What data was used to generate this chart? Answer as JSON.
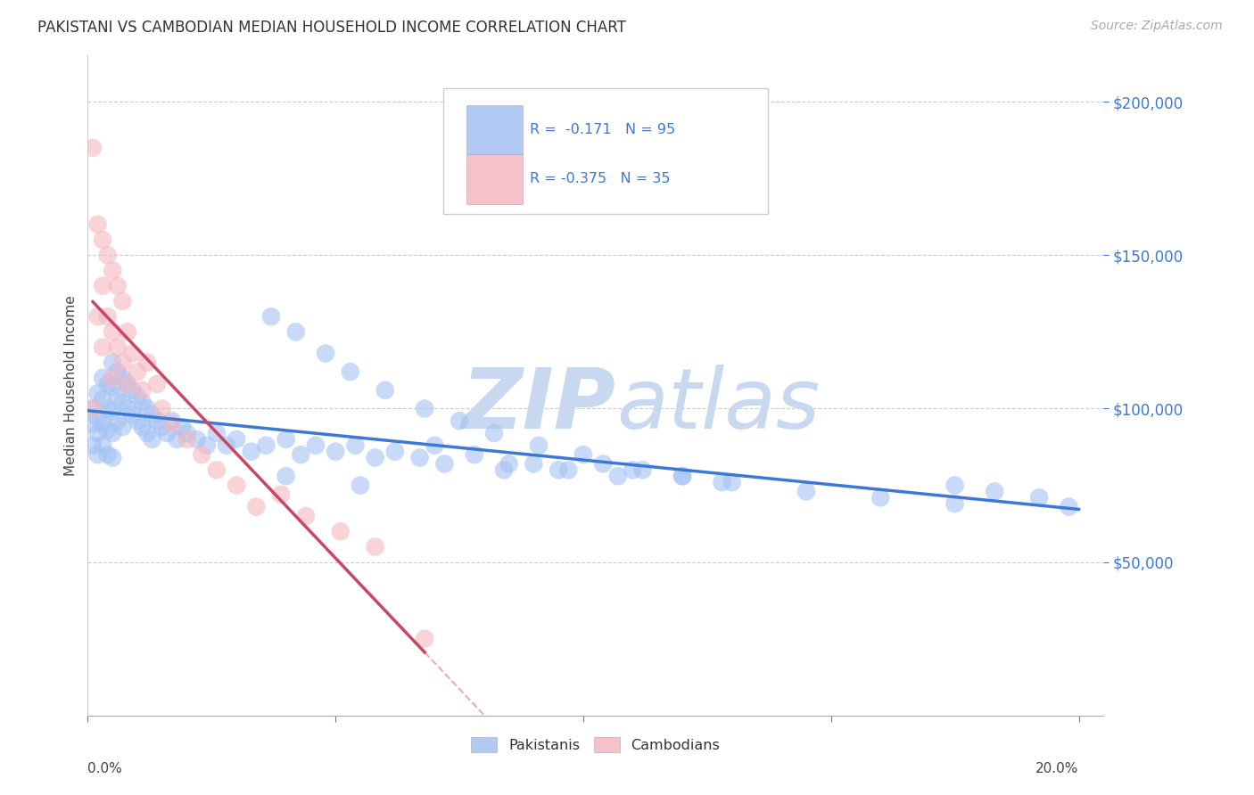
{
  "title": "PAKISTANI VS CAMBODIAN MEDIAN HOUSEHOLD INCOME CORRELATION CHART",
  "source": "Source: ZipAtlas.com",
  "ylabel": "Median Household Income",
  "yticks": [
    50000,
    100000,
    150000,
    200000
  ],
  "ytick_labels": [
    "$50,000",
    "$100,000",
    "$150,000",
    "$200,000"
  ],
  "xlim": [
    0.0,
    0.205
  ],
  "ylim": [
    0,
    215000
  ],
  "pakistani_color": "#a4c2f4",
  "cambodian_color": "#f4b8c1",
  "pakistani_line_color": "#3c78d8",
  "cambodian_line_color": "#cc4466",
  "ytick_color": "#3c78d8",
  "watermark_color": "#c8d8f0",
  "background_color": "#ffffff",
  "grid_color": "#cccccc",
  "pakistani_x": [
    0.001,
    0.001,
    0.001,
    0.002,
    0.002,
    0.002,
    0.002,
    0.003,
    0.003,
    0.003,
    0.003,
    0.004,
    0.004,
    0.004,
    0.004,
    0.005,
    0.005,
    0.005,
    0.005,
    0.005,
    0.006,
    0.006,
    0.006,
    0.007,
    0.007,
    0.007,
    0.008,
    0.008,
    0.009,
    0.009,
    0.01,
    0.01,
    0.011,
    0.011,
    0.012,
    0.012,
    0.013,
    0.013,
    0.014,
    0.015,
    0.016,
    0.017,
    0.018,
    0.019,
    0.02,
    0.022,
    0.024,
    0.026,
    0.028,
    0.03,
    0.033,
    0.036,
    0.04,
    0.043,
    0.046,
    0.05,
    0.054,
    0.058,
    0.062,
    0.067,
    0.072,
    0.078,
    0.084,
    0.09,
    0.097,
    0.104,
    0.112,
    0.12,
    0.128,
    0.037,
    0.042,
    0.048,
    0.053,
    0.06,
    0.068,
    0.075,
    0.082,
    0.091,
    0.1,
    0.11,
    0.12,
    0.13,
    0.145,
    0.16,
    0.175,
    0.04,
    0.055,
    0.07,
    0.085,
    0.095,
    0.107,
    0.175,
    0.183,
    0.192,
    0.198
  ],
  "pakistani_y": [
    100000,
    95000,
    88000,
    105000,
    97000,
    92000,
    85000,
    110000,
    103000,
    95000,
    88000,
    108000,
    100000,
    93000,
    85000,
    115000,
    107000,
    99000,
    92000,
    84000,
    112000,
    104000,
    96000,
    110000,
    102000,
    94000,
    108000,
    100000,
    106000,
    98000,
    104000,
    96000,
    102000,
    94000,
    100000,
    92000,
    98000,
    90000,
    96000,
    94000,
    92000,
    96000,
    90000,
    94000,
    92000,
    90000,
    88000,
    92000,
    88000,
    90000,
    86000,
    88000,
    90000,
    85000,
    88000,
    86000,
    88000,
    84000,
    86000,
    84000,
    82000,
    85000,
    80000,
    82000,
    80000,
    82000,
    80000,
    78000,
    76000,
    130000,
    125000,
    118000,
    112000,
    106000,
    100000,
    96000,
    92000,
    88000,
    85000,
    80000,
    78000,
    76000,
    73000,
    71000,
    69000,
    78000,
    75000,
    88000,
    82000,
    80000,
    78000,
    75000,
    73000,
    71000,
    68000
  ],
  "cambodian_x": [
    0.001,
    0.001,
    0.002,
    0.002,
    0.003,
    0.003,
    0.003,
    0.004,
    0.004,
    0.005,
    0.005,
    0.005,
    0.006,
    0.006,
    0.007,
    0.007,
    0.008,
    0.008,
    0.009,
    0.01,
    0.011,
    0.012,
    0.014,
    0.015,
    0.017,
    0.02,
    0.023,
    0.026,
    0.03,
    0.034,
    0.039,
    0.044,
    0.051,
    0.058,
    0.068
  ],
  "cambodian_y": [
    185000,
    100000,
    160000,
    130000,
    155000,
    140000,
    120000,
    150000,
    130000,
    145000,
    125000,
    110000,
    140000,
    120000,
    135000,
    115000,
    125000,
    108000,
    118000,
    112000,
    106000,
    115000,
    108000,
    100000,
    95000,
    90000,
    85000,
    80000,
    75000,
    68000,
    72000,
    65000,
    60000,
    55000,
    25000
  ]
}
